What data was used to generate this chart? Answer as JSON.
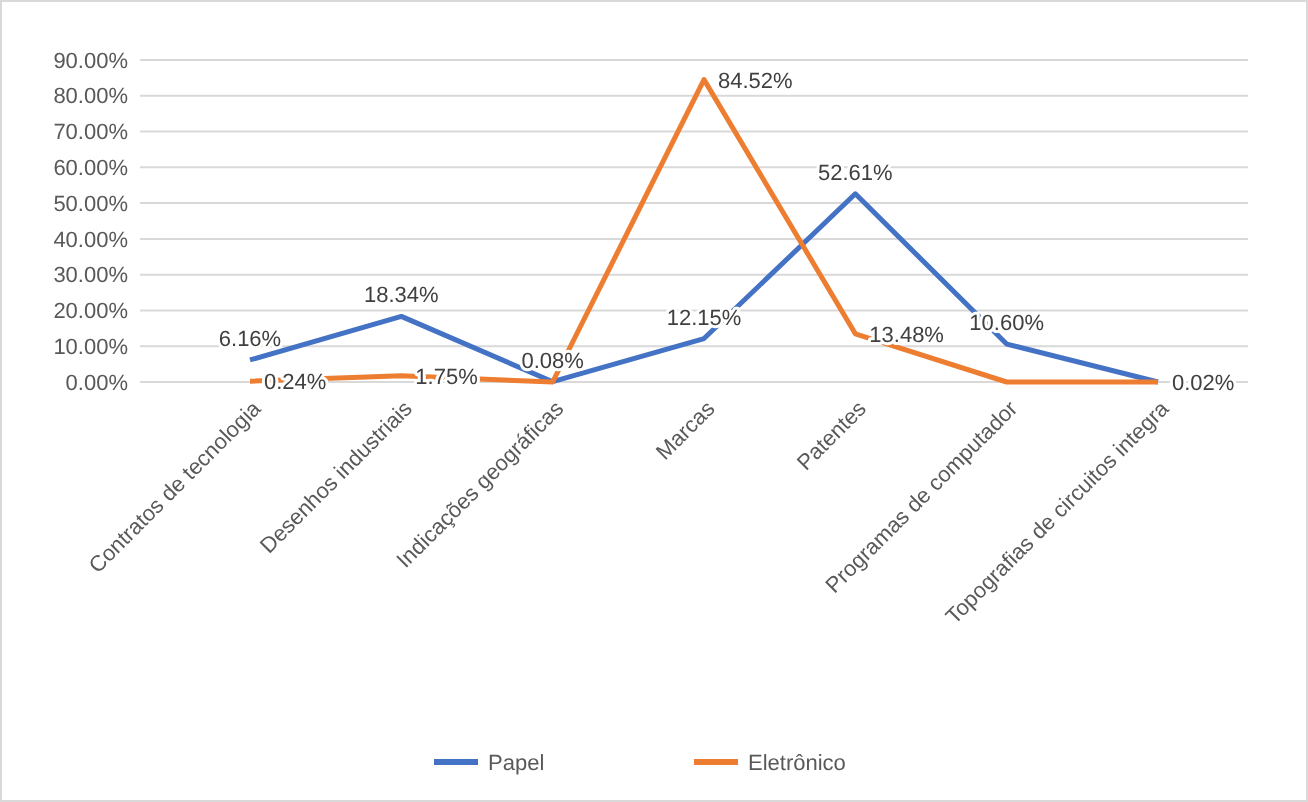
{
  "chart_data": {
    "type": "line",
    "categories": [
      "Contratos de tecnologia",
      "Desenhos industriais",
      "Indicações geográficas",
      "Marcas",
      "Patentes",
      "Programas de computador",
      "Topografias de circuitos integra"
    ],
    "series": [
      {
        "name": "Papel",
        "color": "#4472c4",
        "values": [
          6.16,
          18.34,
          0.08,
          12.15,
          52.61,
          10.6,
          0
        ],
        "value_labels": [
          "6.16%",
          "18.34%",
          "0.08%",
          "12.15%",
          "52.61%",
          "10.60%",
          null
        ]
      },
      {
        "name": "Eletrônico",
        "color": "#ed7d31",
        "values": [
          0.24,
          1.75,
          0,
          84.52,
          13.48,
          0,
          0.02
        ],
        "value_labels": [
          "0.24%",
          "1.75%",
          null,
          "84.52%",
          "13.48%",
          null,
          "0.02%"
        ]
      }
    ],
    "ylim": [
      0,
      90
    ],
    "yticks": [
      {
        "value": 0,
        "label": "0.00%"
      },
      {
        "value": 10,
        "label": "10.00%"
      },
      {
        "value": 20,
        "label": "20.00%"
      },
      {
        "value": 30,
        "label": "30.00%"
      },
      {
        "value": 40,
        "label": "40.00%"
      },
      {
        "value": 50,
        "label": "50.00%"
      },
      {
        "value": 60,
        "label": "60.00%"
      },
      {
        "value": 70,
        "label": "70.00%"
      },
      {
        "value": 80,
        "label": "80.00%"
      },
      {
        "value": 90,
        "label": "90.00%"
      }
    ],
    "grid": "y",
    "legend": "bottom",
    "marker": "none",
    "line_style": "solid"
  }
}
